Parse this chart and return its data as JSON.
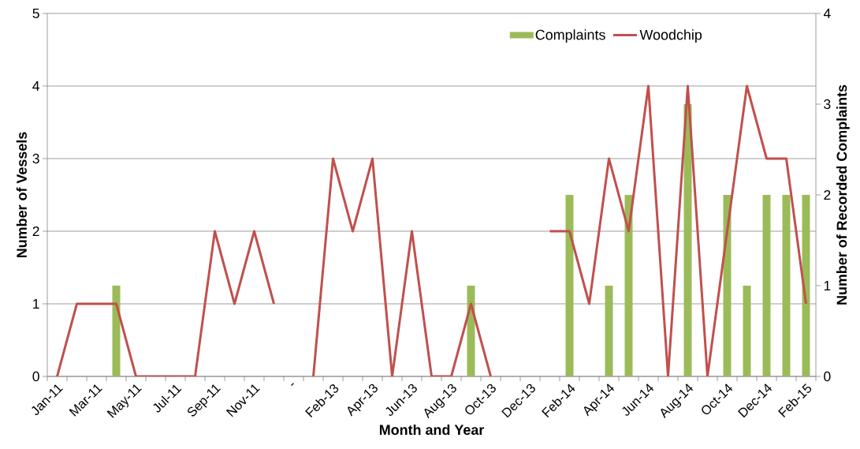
{
  "chart_data": {
    "type": "bar",
    "xlabel": "Month and Year",
    "ylabel": "Number of Vessels",
    "y2label": "Number of Recorded Complaints",
    "categories": [
      "Jan-11",
      null,
      "Mar-11",
      null,
      "May-11",
      null,
      "Jul-11",
      null,
      "Sep-11",
      null,
      "Nov-11",
      null,
      "-",
      null,
      "Feb-13",
      null,
      "Apr-13",
      null,
      "Jun-13",
      null,
      "Aug-13",
      null,
      "Oct-13",
      null,
      "Dec-13",
      null,
      "Feb-14",
      null,
      "Apr-14",
      null,
      "Jun-14",
      null,
      "Aug-14",
      null,
      "Oct-14",
      null,
      "Dec-14",
      null,
      "Feb-15"
    ],
    "series": [
      {
        "name": "Complaints",
        "axis": "y2",
        "color": "#9bbb59",
        "values": [
          0,
          0,
          0,
          1,
          0,
          0,
          0,
          0,
          0,
          0,
          0,
          0,
          null,
          0,
          0,
          0,
          0,
          0,
          0,
          0,
          0,
          1,
          0,
          0,
          0,
          0,
          2,
          0,
          1,
          2,
          0,
          0,
          3,
          0,
          2,
          1,
          2,
          2,
          2
        ]
      },
      {
        "name": "Woodchip",
        "type": "line",
        "color": "#c0504d",
        "values": [
          0,
          1,
          1,
          1,
          0,
          0,
          0,
          0,
          2,
          1,
          2,
          1,
          null,
          0,
          3,
          2,
          3,
          0,
          2,
          0,
          0,
          1,
          0,
          null,
          null,
          2,
          2,
          1,
          3,
          2,
          4,
          0,
          4,
          0,
          2,
          4,
          3,
          3,
          1
        ]
      }
    ],
    "ylim": [
      0,
      5
    ],
    "yticks": [
      0,
      1,
      2,
      3,
      4,
      5
    ],
    "y2lim": [
      0,
      4
    ],
    "y2ticks": [
      0,
      1,
      2,
      3,
      4
    ],
    "grid": "y",
    "legend": "top right"
  }
}
